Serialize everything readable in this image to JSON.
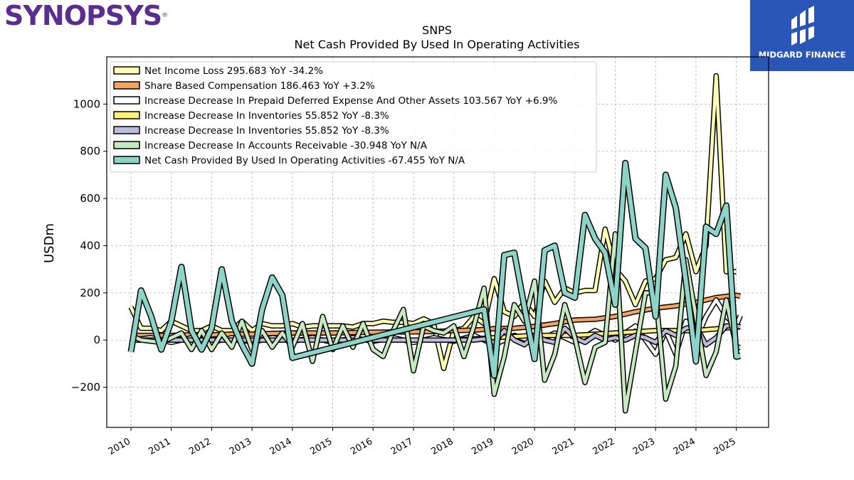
{
  "header": {
    "left_logo_text": "SYNOPSYS",
    "right_logo_text": "MIDGARD FINANCE"
  },
  "colors": {
    "net_income": "#ffffb3",
    "share_comp": "#f4a460",
    "prepaid": "#ffffff",
    "inventories_yellow": "#fff07a",
    "inventories_purple": "#bebada",
    "receivable": "#c7e9c0",
    "net_cash": "#8dd3c7",
    "right_logo_bg": "#2a56b8",
    "left_logo": "#5a2d91"
  },
  "chart_data": {
    "type": "line",
    "title": "SNPS",
    "subtitle": "Net Cash Provided By Used In Operating Activities",
    "ylabel": "USDm",
    "xlim": [
      2009.4,
      2025.8
    ],
    "ylim": [
      -370,
      1200
    ],
    "x_ticks": [
      "2010",
      "2011",
      "2012",
      "2013",
      "2014",
      "2015",
      "2016",
      "2017",
      "2018",
      "2019",
      "2020",
      "2021",
      "2022",
      "2023",
      "2024",
      "2025"
    ],
    "y_ticks": [
      -200,
      0,
      200,
      400,
      600,
      800,
      1000
    ],
    "y_tick_labels": [
      "−200",
      "0",
      "200",
      "400",
      "600",
      "800",
      "1000"
    ],
    "grid": true,
    "legend_position": "top-left",
    "series": [
      {
        "name": "Net Income Loss",
        "legend_label": "Net Income Loss  295.683 YoY -34.2%",
        "color": "#ffffb3",
        "x": [
          2010.0,
          2010.25,
          2010.5,
          2010.75,
          2011.0,
          2011.25,
          2011.5,
          2011.75,
          2012.0,
          2012.25,
          2012.5,
          2012.75,
          2013.0,
          2013.25,
          2013.5,
          2013.75,
          2014.0,
          2014.25,
          2014.5,
          2014.75,
          2015.0,
          2015.25,
          2015.5,
          2015.75,
          2016.0,
          2016.25,
          2016.5,
          2016.75,
          2017.0,
          2017.25,
          2017.5,
          2017.75,
          2018.0,
          2018.25,
          2018.5,
          2018.75,
          2019.0,
          2019.25,
          2019.5,
          2019.75,
          2020.0,
          2020.25,
          2020.5,
          2020.75,
          2021.0,
          2021.25,
          2021.5,
          2021.75,
          2022.0,
          2022.25,
          2022.5,
          2022.75,
          2023.0,
          2023.25,
          2023.5,
          2023.75,
          2024.0,
          2024.25,
          2024.5,
          2024.75,
          2025.0
        ],
        "y": [
          140,
          50,
          50,
          40,
          80,
          60,
          40,
          40,
          60,
          40,
          40,
          80,
          40,
          70,
          60,
          60,
          70,
          55,
          60,
          60,
          60,
          60,
          55,
          70,
          70,
          80,
          75,
          75,
          70,
          90,
          70,
          -120,
          40,
          50,
          100,
          70,
          260,
          120,
          100,
          160,
          100,
          250,
          160,
          220,
          200,
          210,
          210,
          470,
          300,
          250,
          150,
          250,
          260,
          340,
          350,
          450,
          290,
          400,
          1120,
          290,
          290
        ]
      },
      {
        "name": "Share Based Compensation",
        "legend_label": "Share Based Compensation  186.463 YoY +3.2%",
        "color": "#f4a460",
        "x": [
          2010.0,
          2010.5,
          2011.0,
          2011.5,
          2012.0,
          2012.5,
          2013.0,
          2013.5,
          2014.0,
          2014.5,
          2015.0,
          2015.5,
          2016.0,
          2016.5,
          2017.0,
          2017.5,
          2018.0,
          2018.5,
          2019.0,
          2019.5,
          2020.0,
          2020.5,
          2021.0,
          2021.5,
          2022.0,
          2022.5,
          2023.0,
          2023.5,
          2024.0,
          2024.5,
          2025.0,
          2025.1
        ],
        "y": [
          20,
          20,
          20,
          22,
          22,
          25,
          25,
          28,
          30,
          30,
          30,
          32,
          33,
          34,
          35,
          36,
          40,
          42,
          48,
          50,
          58,
          70,
          85,
          88,
          100,
          120,
          135,
          145,
          160,
          180,
          190,
          186
        ]
      },
      {
        "name": "Increase Decrease In Prepaid Deferred Expense And Other Assets",
        "legend_label": "Increase Decrease In Prepaid Deferred Expense And Other Assets  103.567 YoY +6.9%",
        "color": "#ffffff",
        "x": [
          2010.0,
          2010.5,
          2011.0,
          2011.5,
          2012.0,
          2012.5,
          2013.0,
          2013.5,
          2014.0,
          2014.5,
          2015.0,
          2015.5,
          2016.0,
          2016.5,
          2017.0,
          2017.5,
          2018.0,
          2018.5,
          2019.0,
          2019.5,
          2020.0,
          2020.5,
          2021.0,
          2021.5,
          2022.0,
          2022.5,
          2023.0,
          2023.25,
          2023.5,
          2023.75,
          2024.0,
          2024.25,
          2024.5,
          2024.75,
          2025.0,
          2025.1
        ],
        "y": [
          0,
          10,
          -10,
          10,
          -10,
          10,
          -10,
          10,
          -5,
          10,
          -10,
          10,
          -5,
          10,
          -10,
          10,
          -5,
          20,
          -20,
          20,
          -10,
          30,
          -10,
          40,
          0,
          60,
          -60,
          40,
          -60,
          80,
          0,
          100,
          170,
          100,
          60,
          104
        ]
      },
      {
        "name": "Increase Decrease In Inventories",
        "legend_label": "Increase Decrease In Inventories  55.852 YoY -8.3%",
        "color": "#fff07a",
        "x": [
          2010.0,
          2011.0,
          2012.0,
          2013.0,
          2014.0,
          2015.0,
          2016.0,
          2017.0,
          2018.0,
          2019.0,
          2020.0,
          2021.0,
          2022.0,
          2023.0,
          2024.0,
          2025.0,
          2025.1
        ],
        "y": [
          0,
          0,
          0,
          0,
          0,
          0,
          0,
          0,
          0,
          10,
          20,
          20,
          30,
          40,
          40,
          55,
          56
        ]
      },
      {
        "name": "Increase Decrease In Inventories",
        "legend_label": "Increase Decrease In Inventories  55.852 YoY -8.3%",
        "color": "#bebada",
        "x": [
          2010.0,
          2010.5,
          2011.0,
          2011.5,
          2012.0,
          2012.5,
          2013.0,
          2013.5,
          2014.0,
          2014.5,
          2015.0,
          2015.5,
          2016.0,
          2016.5,
          2017.0,
          2017.5,
          2018.0,
          2018.5,
          2018.75,
          2019.0,
          2019.25,
          2019.5,
          2019.75,
          2020.0,
          2020.25,
          2020.5,
          2020.75,
          2021.0,
          2021.25,
          2021.5,
          2021.75,
          2022.0,
          2022.25,
          2022.5,
          2022.75,
          2023.0,
          2023.25,
          2023.5,
          2023.75,
          2024.0,
          2024.25,
          2024.5,
          2024.75,
          2025.0,
          2025.1
        ],
        "y": [
          0,
          0,
          0,
          0,
          0,
          0,
          0,
          0,
          0,
          0,
          0,
          0,
          0,
          0,
          0,
          0,
          0,
          0,
          5,
          -10,
          40,
          0,
          -20,
          20,
          0,
          -10,
          50,
          10,
          -10,
          20,
          0,
          10,
          0,
          20,
          10,
          -10,
          40,
          20,
          50,
          60,
          -20,
          10,
          60,
          60,
          56
        ]
      },
      {
        "name": "Increase Decrease In Accounts Receivable",
        "legend_label": "Increase Decrease In Accounts Receivable  -30.948 YoY N/A",
        "color": "#c7e9c0",
        "x": [
          2010.0,
          2010.25,
          2010.5,
          2010.75,
          2011.0,
          2011.25,
          2011.5,
          2011.75,
          2012.0,
          2012.25,
          2012.5,
          2012.75,
          2013.0,
          2013.25,
          2013.5,
          2013.75,
          2014.0,
          2014.25,
          2014.5,
          2014.75,
          2015.0,
          2015.25,
          2015.5,
          2015.75,
          2016.0,
          2016.25,
          2016.5,
          2016.75,
          2017.0,
          2017.25,
          2017.5,
          2017.75,
          2018.0,
          2018.25,
          2018.5,
          2018.75,
          2019.0,
          2019.25,
          2019.5,
          2019.75,
          2020.0,
          2020.25,
          2020.5,
          2020.75,
          2021.0,
          2021.25,
          2021.5,
          2021.75,
          2022.0,
          2022.25,
          2022.5,
          2022.75,
          2023.0,
          2023.25,
          2023.5,
          2023.75,
          2024.0,
          2024.25,
          2024.5,
          2024.75,
          2025.0,
          2025.1
        ],
        "y": [
          20,
          0,
          -5,
          -10,
          10,
          30,
          -40,
          40,
          -40,
          30,
          -30,
          80,
          -40,
          40,
          -30,
          30,
          -30,
          70,
          -90,
          100,
          -40,
          60,
          -30,
          70,
          -40,
          -70,
          40,
          130,
          -130,
          60,
          40,
          30,
          60,
          -70,
          60,
          220,
          -230,
          -70,
          150,
          80,
          250,
          -170,
          -60,
          150,
          10,
          -180,
          -30,
          -10,
          450,
          -300,
          -50,
          200,
          200,
          -250,
          -110,
          340,
          100,
          -150,
          -50,
          170,
          -30,
          -31
        ]
      },
      {
        "name": "Net Cash Provided By Used In Operating Activities",
        "legend_label": "Net Cash Provided By Used In Operating Activities  -67.455 YoY N/A",
        "color": "#8dd3c7",
        "x": [
          2010.0,
          2010.25,
          2010.5,
          2010.75,
          2011.0,
          2011.25,
          2011.5,
          2011.75,
          2012.0,
          2012.25,
          2012.5,
          2012.75,
          2013.0,
          2013.25,
          2013.5,
          2013.75,
          2014.0,
          2018.75,
          2019.0,
          2019.25,
          2019.5,
          2019.75,
          2020.0,
          2020.25,
          2020.5,
          2020.75,
          2021.0,
          2021.25,
          2021.5,
          2021.75,
          2022.0,
          2022.25,
          2022.5,
          2022.75,
          2023.0,
          2023.25,
          2023.5,
          2023.75,
          2024.0,
          2024.25,
          2024.5,
          2024.75,
          2025.0,
          2025.1
        ],
        "y": [
          -50,
          210,
          100,
          -40,
          80,
          310,
          40,
          -40,
          50,
          300,
          80,
          -20,
          -100,
          130,
          265,
          190,
          -75,
          130,
          -150,
          360,
          370,
          140,
          -80,
          380,
          400,
          200,
          180,
          530,
          430,
          370,
          150,
          750,
          430,
          390,
          100,
          700,
          560,
          250,
          -90,
          480,
          450,
          570,
          -70,
          -67
        ]
      }
    ]
  }
}
